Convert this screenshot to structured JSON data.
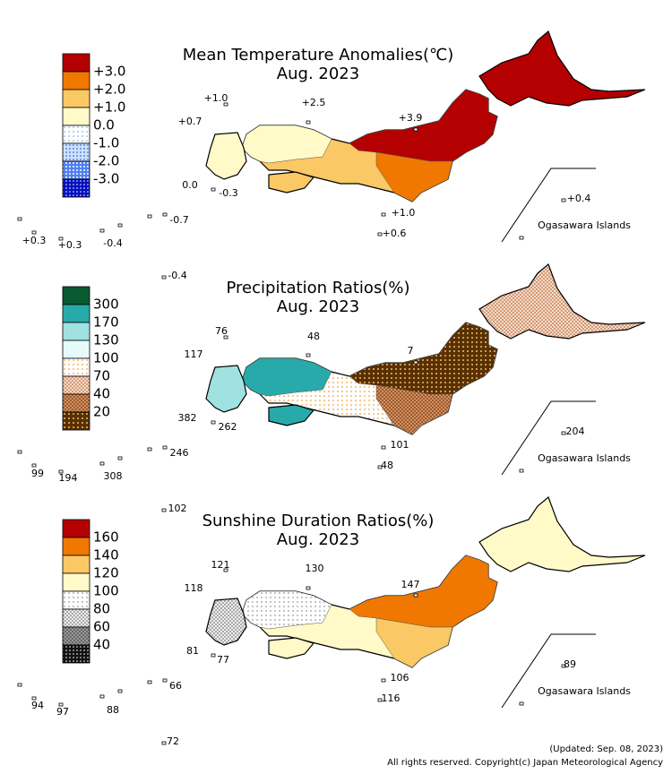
{
  "panels": [
    {
      "title": "Mean Temperature Anomalies(℃)",
      "subtitle": "Aug. 2023",
      "legend_labels": [
        "+3.0",
        "+2.0",
        "+1.0",
        "0.0",
        "-1.0",
        "-2.0",
        "-3.0"
      ],
      "station_labels": [
        "+1.0",
        "+2.5",
        "+0.7",
        "+3.9",
        "0.0",
        "-0.3",
        "-0.7",
        "+0.3",
        "+0.3",
        "-0.4",
        "-0.4",
        "+1.0",
        "+0.6",
        "+0.4"
      ],
      "region_label": "Ogasawara Islands"
    },
    {
      "title": "Precipitation Ratios(%)",
      "subtitle": "Aug. 2023",
      "legend_labels": [
        "300",
        "170",
        "130",
        "100",
        "70",
        "40",
        "20"
      ],
      "station_labels": [
        "76",
        "48",
        "117",
        "7",
        "382",
        "262",
        "246",
        "99",
        "194",
        "308",
        "102",
        "101",
        "48",
        "204"
      ],
      "region_label": "Ogasawara Islands"
    },
    {
      "title": "Sunshine Duration Ratios(%)",
      "subtitle": "Aug. 2023",
      "legend_labels": [
        "160",
        "140",
        "120",
        "100",
        "80",
        "60",
        "40"
      ],
      "station_labels": [
        "121",
        "130",
        "118",
        "147",
        "81",
        "77",
        "66",
        "94",
        "97",
        "88",
        "72",
        "106",
        "116",
        "89"
      ],
      "region_label": "Ogasawara Islands"
    }
  ],
  "footer": {
    "updated": "(Updated: Sep. 08, 2023)",
    "copyright": "All rights reserved. Copyright(c) Japan Meteorological Agency"
  }
}
